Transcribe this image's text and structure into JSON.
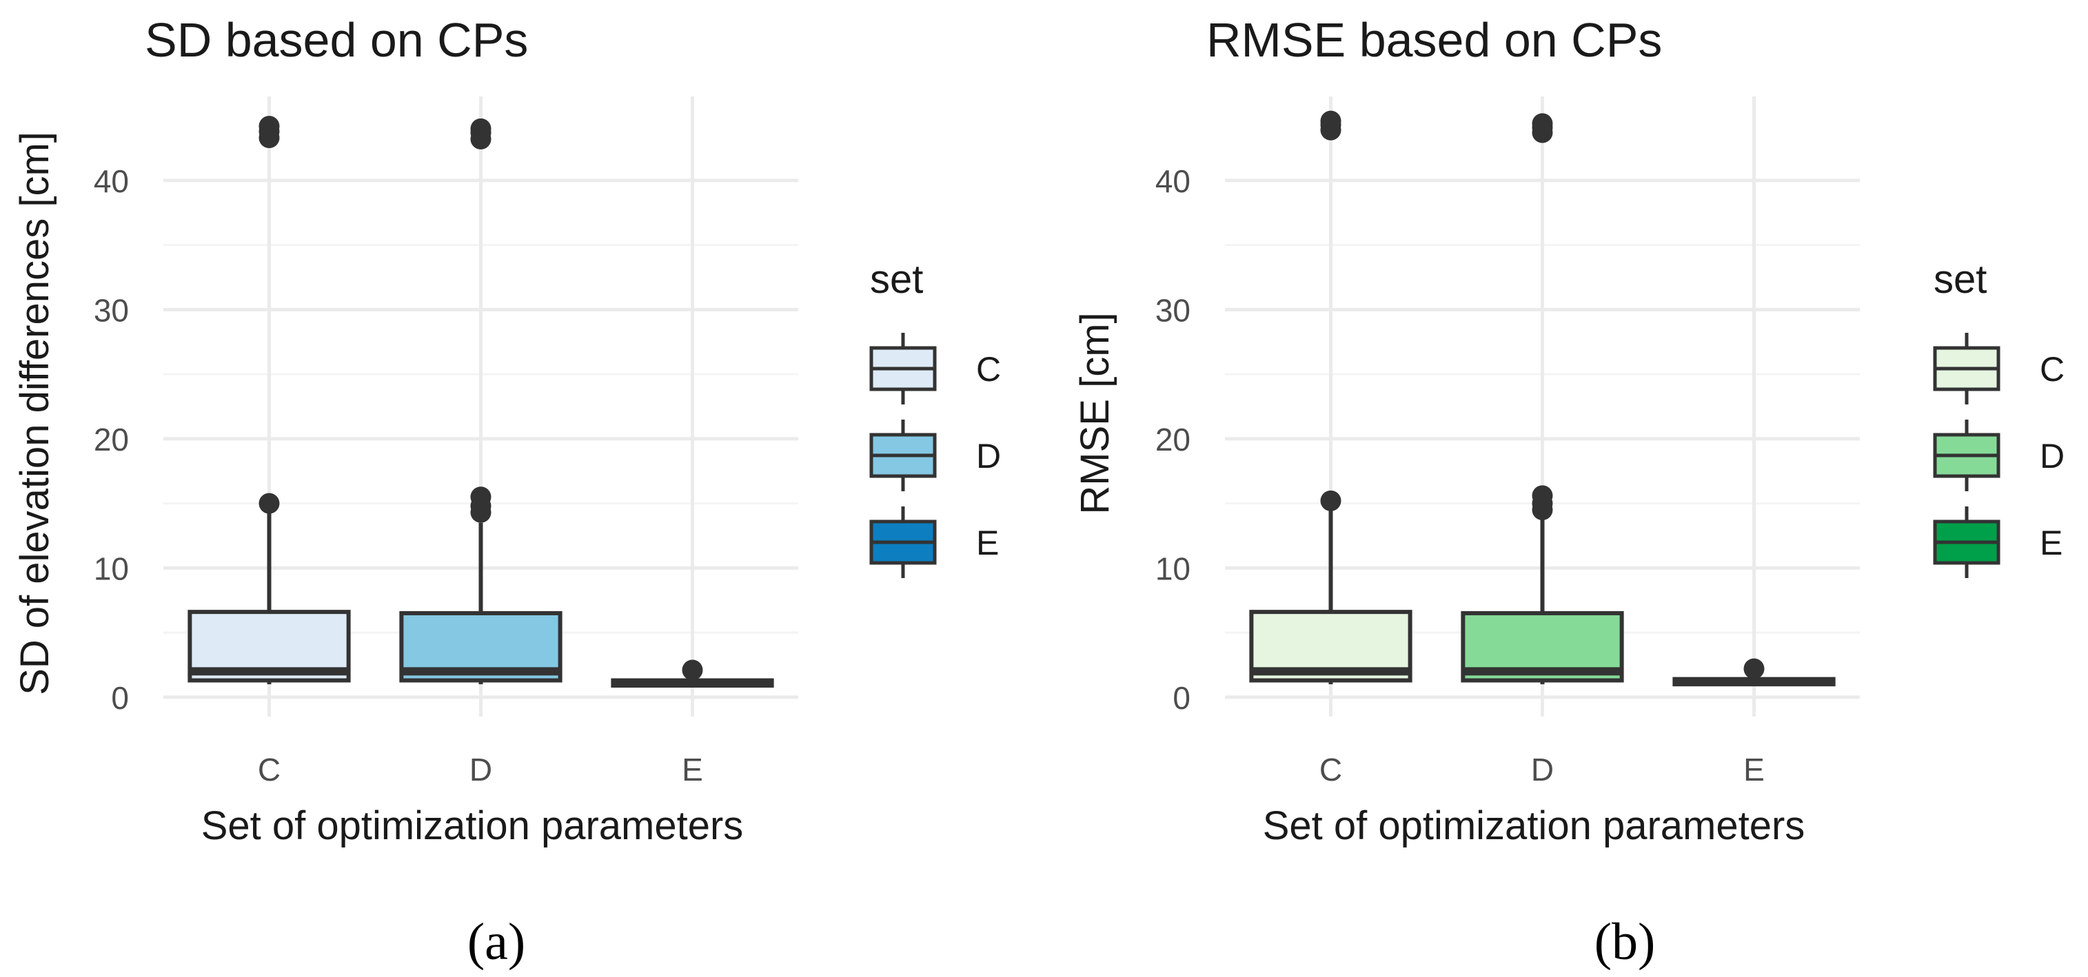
{
  "chart_data": [
    {
      "type": "boxplot",
      "panel_label": "(a)",
      "title": "SD based on CPs",
      "xlabel": "Set of optimization parameters",
      "ylabel": "SD of elevation differences [cm]",
      "ylim": [
        -1.5,
        46.5
      ],
      "yticks": [
        0,
        10,
        20,
        30,
        40
      ],
      "categories": [
        "C",
        "D",
        "E"
      ],
      "legend": {
        "title": "set",
        "position": "right",
        "entries": [
          "C",
          "D",
          "E"
        ]
      },
      "colors": {
        "C": "#deebf7",
        "D": "#85c8e3",
        "E": "#0d7fc0"
      },
      "boxes": [
        {
          "category": "C",
          "whisker_low": 1.0,
          "q1": 1.3,
          "median": 2.0,
          "q3": 6.6,
          "whisker_high": 15.0,
          "outliers": [
            15.0,
            43.3,
            43.8,
            44.2
          ]
        },
        {
          "category": "D",
          "whisker_low": 1.0,
          "q1": 1.3,
          "median": 2.0,
          "q3": 6.5,
          "whisker_high": 13.5,
          "outliers": [
            14.3,
            14.8,
            15.5,
            43.2,
            43.7,
            44.0
          ]
        },
        {
          "category": "E",
          "whisker_low": 0.8,
          "q1": 0.9,
          "median": 1.1,
          "q3": 1.3,
          "whisker_high": 1.5,
          "outliers": [
            2.1
          ]
        }
      ]
    },
    {
      "type": "boxplot",
      "panel_label": "(b)",
      "title": "RMSE based on CPs",
      "xlabel": "Set of optimization parameters",
      "ylabel": "RMSE [cm]",
      "ylim": [
        -1.5,
        46.5
      ],
      "yticks": [
        0,
        10,
        20,
        30,
        40
      ],
      "categories": [
        "C",
        "D",
        "E"
      ],
      "legend": {
        "title": "set",
        "position": "right",
        "entries": [
          "C",
          "D",
          "E"
        ]
      },
      "colors": {
        "C": "#e5f5e0",
        "D": "#86da98",
        "E": "#00a04a"
      },
      "boxes": [
        {
          "category": "C",
          "whisker_low": 1.0,
          "q1": 1.3,
          "median": 2.0,
          "q3": 6.6,
          "whisker_high": 15.2,
          "outliers": [
            15.2,
            43.9,
            44.3,
            44.6
          ]
        },
        {
          "category": "D",
          "whisker_low": 1.0,
          "q1": 1.3,
          "median": 2.0,
          "q3": 6.5,
          "whisker_high": 13.8,
          "outliers": [
            14.5,
            15.0,
            15.6,
            43.7,
            44.1,
            44.4
          ]
        },
        {
          "category": "E",
          "whisker_low": 0.9,
          "q1": 1.0,
          "median": 1.2,
          "q3": 1.4,
          "whisker_high": 1.6,
          "outliers": [
            2.2
          ]
        }
      ]
    }
  ]
}
